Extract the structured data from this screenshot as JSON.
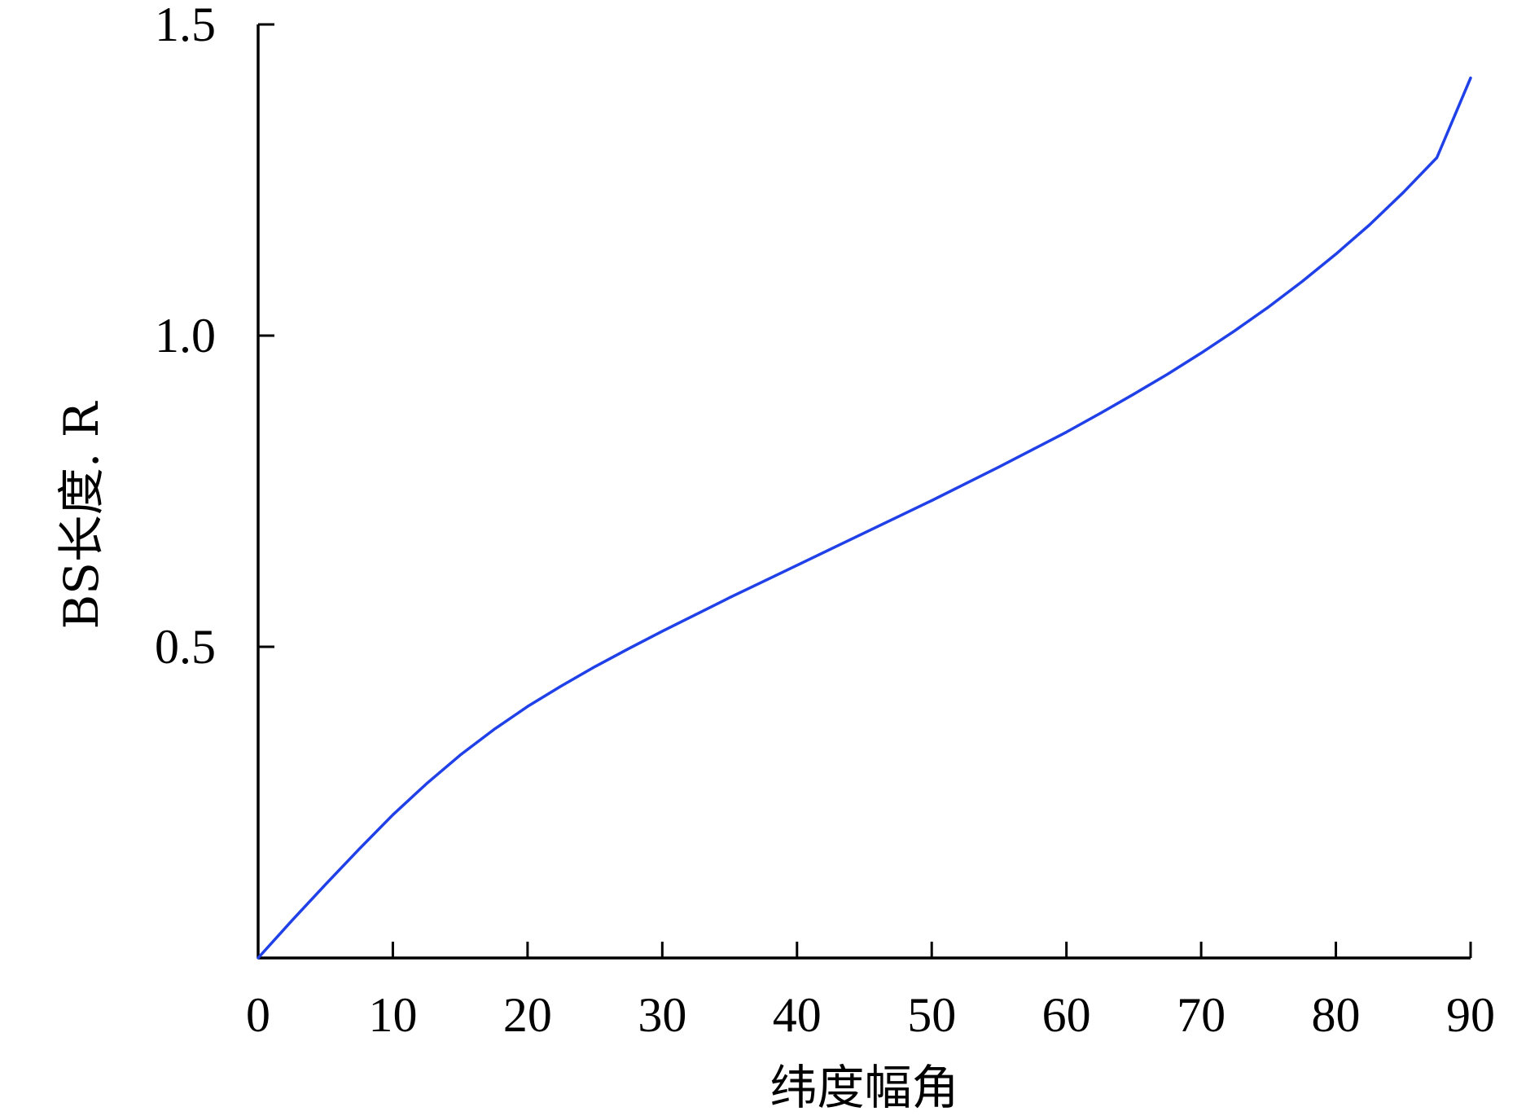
{
  "chart_data": {
    "type": "line",
    "title": "",
    "xlabel": "纬度幅角",
    "ylabel": "BS长度. R",
    "xlim": [
      0,
      90
    ],
    "ylim": [
      0,
      1.5
    ],
    "x_ticks": [
      0,
      10,
      20,
      30,
      40,
      50,
      60,
      70,
      80,
      90
    ],
    "x_tick_labels": [
      "0",
      "10",
      "20",
      "30",
      "40",
      "50",
      "60",
      "70",
      "80",
      "90"
    ],
    "y_ticks": [
      0.5,
      1.0,
      1.5
    ],
    "y_tick_labels": [
      "0.5",
      "1.0",
      "1.5"
    ],
    "grid": false,
    "legend": "none",
    "series": [
      {
        "color": "#2040e8",
        "x": [
          0,
          2.5,
          5,
          7.5,
          10,
          12.5,
          15,
          17.5,
          20,
          22.5,
          25,
          27.5,
          30,
          32.5,
          35,
          37.5,
          40,
          42.5,
          45,
          47.5,
          50,
          52.5,
          55,
          57.5,
          60,
          62.5,
          65,
          67.5,
          70,
          72.5,
          75,
          77.5,
          80,
          82.5,
          85,
          87.5,
          90
        ],
        "y": [
          0.0,
          0.06,
          0.118,
          0.175,
          0.23,
          0.28,
          0.326,
          0.367,
          0.404,
          0.437,
          0.468,
          0.497,
          0.525,
          0.552,
          0.579,
          0.605,
          0.631,
          0.657,
          0.683,
          0.709,
          0.735,
          0.762,
          0.789,
          0.817,
          0.845,
          0.875,
          0.906,
          0.938,
          0.972,
          1.008,
          1.046,
          1.087,
          1.131,
          1.178,
          1.23,
          1.286,
          1.414
        ]
      }
    ]
  }
}
